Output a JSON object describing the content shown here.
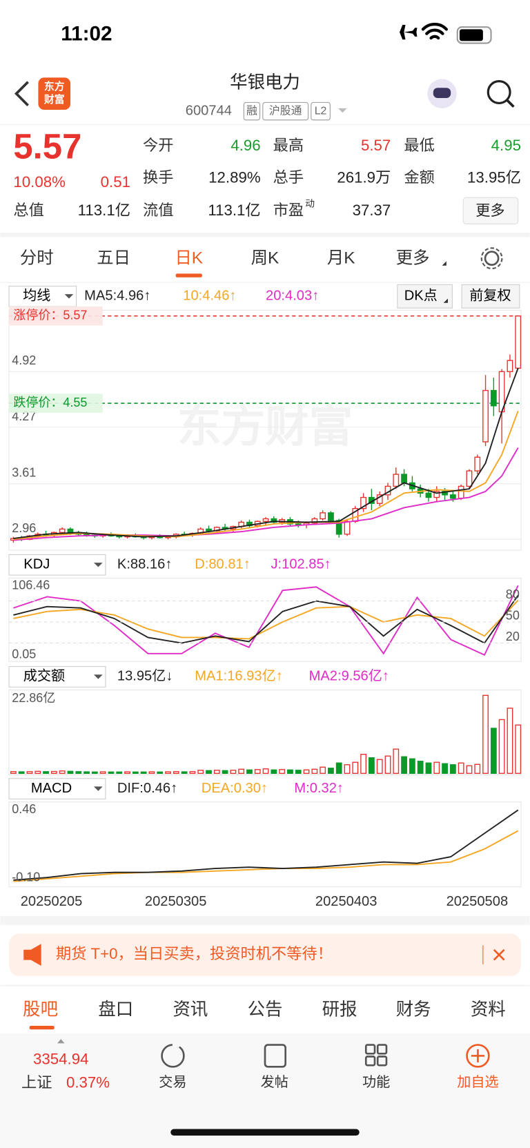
{
  "status": {
    "time": "11:02"
  },
  "header": {
    "logo": [
      "东方",
      "财富"
    ],
    "name": "华银电力",
    "code": "600744",
    "tags": [
      "融",
      "沪股通",
      "L2"
    ]
  },
  "quote": {
    "price": "5.57",
    "pct": "10.08%",
    "change": "0.51",
    "more": "更多",
    "cells": [
      {
        "label": "今开",
        "value": "4.96"
      },
      {
        "label": "最高",
        "value": "5.57"
      },
      {
        "label": "最低",
        "value": "4.95"
      },
      {
        "label": "换手",
        "value": "12.89%"
      },
      {
        "label": "总手",
        "value": "261.9万"
      },
      {
        "label": "金额",
        "value": "13.95亿"
      },
      {
        "label": "总值",
        "value": "113.1亿"
      },
      {
        "label": "流值",
        "value": "113.1亿"
      },
      {
        "label": "市盈",
        "sup": "动",
        "value": "37.37"
      }
    ]
  },
  "period_tabs": [
    "分时",
    "五日",
    "日K",
    "周K",
    "月K",
    "更多"
  ],
  "kline": {
    "indicator": "均线",
    "legend": [
      "MA5:4.96↑",
      "10:4.46↑",
      "20:4.03↑"
    ],
    "dk": "DK点",
    "adjust": "前复权",
    "watermark": "东方财富",
    "ylim": [
      2.85,
      5.62
    ],
    "yticks": [
      4.92,
      4.27,
      3.61,
      2.96
    ],
    "limit_up": {
      "label": "涨停价：",
      "value": 5.57
    },
    "limit_down": {
      "label": "跌停价：",
      "value": 4.55
    },
    "candles": [
      [
        2.95,
        2.99,
        2.92,
        2.97
      ],
      [
        2.97,
        3.0,
        2.94,
        2.96
      ],
      [
        2.96,
        3.01,
        2.95,
        3.0
      ],
      [
        3.0,
        3.04,
        2.98,
        3.02
      ],
      [
        3.02,
        3.06,
        2.99,
        3.01
      ],
      [
        3.01,
        3.05,
        2.99,
        3.04
      ],
      [
        3.04,
        3.1,
        3.02,
        3.08
      ],
      [
        3.08,
        3.1,
        3.01,
        3.03
      ],
      [
        3.03,
        3.06,
        3.0,
        3.02
      ],
      [
        3.02,
        3.05,
        2.99,
        3.01
      ],
      [
        3.01,
        3.03,
        2.98,
        3.0
      ],
      [
        3.0,
        3.03,
        2.98,
        3.01
      ],
      [
        3.01,
        3.04,
        2.99,
        3.0
      ],
      [
        3.0,
        3.02,
        2.97,
        2.99
      ],
      [
        2.99,
        3.02,
        2.97,
        3.0
      ],
      [
        3.0,
        3.03,
        2.98,
        2.99
      ],
      [
        2.99,
        3.01,
        2.96,
        2.98
      ],
      [
        2.98,
        3.01,
        2.96,
        3.0
      ],
      [
        3.0,
        3.02,
        2.97,
        2.98
      ],
      [
        2.98,
        3.01,
        2.96,
        2.99
      ],
      [
        2.99,
        3.03,
        2.97,
        3.02
      ],
      [
        3.02,
        3.05,
        3.0,
        3.01
      ],
      [
        3.01,
        3.04,
        2.99,
        3.03
      ],
      [
        3.03,
        3.1,
        3.02,
        3.08
      ],
      [
        3.08,
        3.12,
        3.04,
        3.06
      ],
      [
        3.06,
        3.11,
        3.04,
        3.1
      ],
      [
        3.1,
        3.14,
        3.06,
        3.08
      ],
      [
        3.08,
        3.12,
        3.05,
        3.11
      ],
      [
        3.11,
        3.18,
        3.09,
        3.16
      ],
      [
        3.16,
        3.19,
        3.1,
        3.12
      ],
      [
        3.12,
        3.18,
        3.1,
        3.17
      ],
      [
        3.17,
        3.22,
        3.13,
        3.2
      ],
      [
        3.2,
        3.23,
        3.14,
        3.16
      ],
      [
        3.16,
        3.21,
        3.13,
        3.19
      ],
      [
        3.19,
        3.22,
        3.12,
        3.14
      ],
      [
        3.14,
        3.18,
        3.1,
        3.13
      ],
      [
        3.13,
        3.17,
        3.09,
        3.15
      ],
      [
        3.15,
        3.22,
        3.13,
        3.2
      ],
      [
        3.2,
        3.3,
        3.18,
        3.27
      ],
      [
        3.27,
        3.29,
        3.15,
        3.18
      ],
      [
        3.18,
        3.2,
        2.98,
        3.02
      ],
      [
        3.02,
        3.2,
        3.0,
        3.17
      ],
      [
        3.17,
        3.35,
        3.15,
        3.32
      ],
      [
        3.32,
        3.5,
        3.28,
        3.45
      ],
      [
        3.45,
        3.55,
        3.3,
        3.38
      ],
      [
        3.38,
        3.52,
        3.35,
        3.48
      ],
      [
        3.48,
        3.62,
        3.42,
        3.58
      ],
      [
        3.58,
        3.8,
        3.55,
        3.72
      ],
      [
        3.72,
        3.78,
        3.58,
        3.62
      ],
      [
        3.62,
        3.7,
        3.52,
        3.55
      ],
      [
        3.55,
        3.6,
        3.45,
        3.5
      ],
      [
        3.5,
        3.55,
        3.4,
        3.45
      ],
      [
        3.45,
        3.58,
        3.4,
        3.52
      ],
      [
        3.52,
        3.56,
        3.42,
        3.48
      ],
      [
        3.48,
        3.52,
        3.4,
        3.44
      ],
      [
        3.44,
        3.6,
        3.42,
        3.58
      ],
      [
        3.58,
        3.78,
        3.55,
        3.76
      ],
      [
        3.76,
        3.95,
        3.72,
        3.92
      ],
      [
        4.1,
        4.88,
        4.05,
        4.7
      ],
      [
        4.7,
        4.85,
        4.4,
        4.52
      ],
      [
        4.45,
        4.95,
        4.08,
        4.92
      ],
      [
        4.92,
        5.12,
        4.85,
        5.05
      ],
      [
        4.96,
        5.57,
        4.95,
        5.57
      ]
    ],
    "ma_x": [
      0,
      4,
      8,
      12,
      16,
      20,
      24,
      28,
      32,
      36,
      40,
      44,
      48,
      52,
      56,
      58,
      60,
      62
    ],
    "ma5": [
      2.97,
      3.02,
      3.04,
      3.01,
      2.99,
      3.0,
      3.05,
      3.11,
      3.17,
      3.16,
      3.17,
      3.4,
      3.62,
      3.5,
      3.55,
      3.85,
      4.45,
      4.96
    ],
    "ma10": [
      2.96,
      3.0,
      3.03,
      3.02,
      3.0,
      2.99,
      3.03,
      3.08,
      3.14,
      3.16,
      3.16,
      3.28,
      3.5,
      3.54,
      3.52,
      3.62,
      3.95,
      4.46
    ],
    "ma20": [
      2.95,
      2.98,
      3.0,
      3.01,
      3.01,
      3.0,
      3.02,
      3.05,
      3.1,
      3.13,
      3.15,
      3.2,
      3.33,
      3.4,
      3.45,
      3.52,
      3.7,
      4.03
    ],
    "dates": [
      "20250205",
      "20250305",
      "20250403",
      "20250508"
    ]
  },
  "kdj": {
    "name": "KDJ",
    "legend": [
      "K:88.16↑",
      "D:80.81↑",
      "J:102.85↑"
    ],
    "ylim": [
      0.05,
      106.46
    ],
    "yticks": [
      80,
      50,
      20
    ],
    "range_labels": [
      "106.46",
      "0.05"
    ],
    "k": [
      60,
      72,
      70,
      55,
      28,
      20,
      30,
      22,
      65,
      80,
      72,
      30,
      68,
      45,
      20,
      88
    ],
    "d": [
      55,
      65,
      68,
      60,
      40,
      28,
      28,
      26,
      50,
      70,
      72,
      50,
      60,
      55,
      30,
      81
    ],
    "j": [
      70,
      86,
      80,
      45,
      5,
      5,
      34,
      14,
      95,
      100,
      72,
      5,
      85,
      25,
      3,
      102
    ]
  },
  "volume": {
    "name": "成交额",
    "legend": [
      "13.95亿↓",
      "MA1:16.93亿↑",
      "MA2:9.56亿↑"
    ],
    "top_label": "22.86亿",
    "ylim": [
      0,
      23
    ],
    "values": [
      0.5,
      0.45,
      0.5,
      0.6,
      0.5,
      0.55,
      0.7,
      0.6,
      0.5,
      0.45,
      0.4,
      0.45,
      0.4,
      0.4,
      0.45,
      0.4,
      0.4,
      0.45,
      0.4,
      0.45,
      0.5,
      0.45,
      0.5,
      0.9,
      0.8,
      0.9,
      0.8,
      0.9,
      1.2,
      1.0,
      1.1,
      1.3,
      1.0,
      1.1,
      1.0,
      0.9,
      1.0,
      1.2,
      1.8,
      1.5,
      3.0,
      2.5,
      3.2,
      5.5,
      4.5,
      4.0,
      5.0,
      7.0,
      4.8,
      4.2,
      3.5,
      3.0,
      3.2,
      2.8,
      2.5,
      3.0,
      2.2,
      2.6,
      22.5,
      13,
      15.5,
      18.8,
      13.95
    ]
  },
  "macd": {
    "name": "MACD",
    "legend": [
      "DIF:0.46↑",
      "DEA:0.30↑",
      "M:0.32↑"
    ],
    "range_labels": [
      "0.46",
      "-0.10"
    ],
    "ylim": [
      -0.12,
      0.5
    ],
    "dif": [
      -0.08,
      -0.06,
      -0.03,
      -0.02,
      -0.02,
      -0.01,
      0.01,
      0.02,
      0.01,
      0.02,
      0.04,
      0.06,
      0.05,
      0.1,
      0.28,
      0.46
    ],
    "dea": [
      -0.09,
      -0.07,
      -0.05,
      -0.03,
      -0.02,
      -0.02,
      -0.01,
      0.0,
      0.01,
      0.01,
      0.02,
      0.04,
      0.04,
      0.06,
      0.16,
      0.3
    ]
  },
  "banner": {
    "text": "期货 T+0，当日买卖，投资时机不等待！"
  },
  "info_tabs": [
    "股吧",
    "盘口",
    "资讯",
    "公告",
    "研报",
    "财务",
    "资料"
  ],
  "footer": {
    "index_value": "3354.94",
    "index_name": "上证",
    "index_pct": "0.37%",
    "nav": [
      "交易",
      "发帖",
      "功能",
      "加自选"
    ]
  }
}
